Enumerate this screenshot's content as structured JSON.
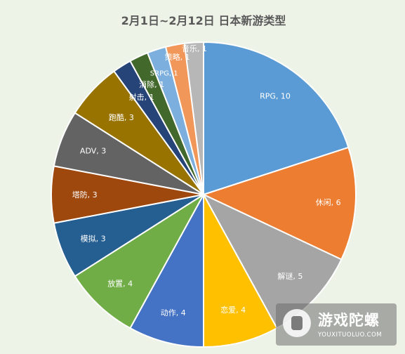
{
  "chart_data": {
    "type": "pie",
    "title": "2月1日~2月12日  日本新游类型",
    "categories": [
      "RPG",
      "休闲",
      "解谜",
      "恋爱",
      "动作",
      "放置",
      "模拟",
      "塔防",
      "ADV",
      "跑酷",
      "射击",
      "消除",
      "SRPG",
      "策略",
      "音乐"
    ],
    "values": [
      10,
      6,
      5,
      4,
      4,
      4,
      3,
      3,
      3,
      3,
      1,
      1,
      1,
      1,
      1
    ],
    "colors": [
      "#5b9bd5",
      "#ed7d31",
      "#a5a5a5",
      "#ffc000",
      "#4472c4",
      "#70ad47",
      "#255e91",
      "#9e480e",
      "#636363",
      "#997300",
      "#264478",
      "#43682b",
      "#7cafdd",
      "#f1975a",
      "#b7b7b7"
    ],
    "data_labels": [
      "RPG, 10",
      "休闲, 6",
      "解谜, 5",
      "恋爱, 4",
      "动作, 4",
      "放置, 4",
      "模拟, 3",
      "塔防, 3",
      "ADV, 3",
      "跑酷, 3",
      "射击, 1",
      "消除, 1",
      "SRPG, 1",
      "策略, 1",
      "音乐, 1"
    ],
    "label_colors": [
      "#ffffff",
      "#ffffff",
      "#ffffff",
      "#ffffff",
      "#ffffff",
      "#ffffff",
      "#ffffff",
      "#ffffff",
      "#ffffff",
      "#ffffff",
      "#ffffff",
      "#ffffff",
      "#ffffff",
      "#ffffff",
      "#ffffff"
    ],
    "legend": "none"
  },
  "watermark": {
    "name_cn": "游戏陀螺",
    "url": "YOUXITUOLUO.COM"
  }
}
